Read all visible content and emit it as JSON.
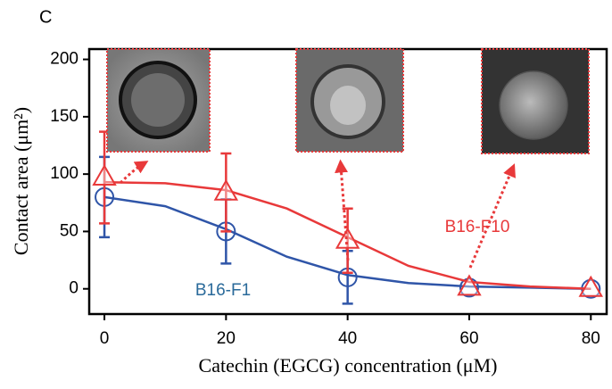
{
  "chart_data": {
    "type": "line",
    "panel_label": "C",
    "x_label": "Catechin (EGCG) concentration (μM)",
    "y_label": "Contact area (μm²)",
    "xlim": [
      -2.5,
      82.6
    ],
    "ylim": [
      -22,
      209
    ],
    "xticks": [
      0,
      20,
      40,
      60,
      80
    ],
    "yticks": [
      0,
      50,
      100,
      150,
      200
    ],
    "series": [
      {
        "name": "B16-F1",
        "color": "#2f55a8",
        "label_color": "#2a6a9a",
        "marker": "circle",
        "x": [
          0,
          20,
          40,
          60,
          80
        ],
        "values": [
          80,
          50,
          10,
          1,
          0
        ],
        "errors": [
          35,
          28,
          23,
          0,
          0
        ],
        "fit_x": [
          0,
          10,
          20,
          30,
          40,
          50,
          60,
          70,
          80
        ],
        "fit_values": [
          80,
          72,
          52,
          28,
          12,
          5,
          2,
          1,
          0
        ]
      },
      {
        "name": "B16-F10",
        "color": "#e8393a",
        "label_color": "#e8393a",
        "marker": "triangle",
        "x": [
          0,
          20,
          40,
          60,
          80
        ],
        "values": [
          97,
          84,
          42,
          1,
          0
        ],
        "errors": [
          40,
          34,
          28,
          0,
          0
        ],
        "fit_x": [
          0,
          10,
          20,
          30,
          40,
          50,
          60,
          70,
          80
        ],
        "fit_values": [
          93,
          92,
          86,
          70,
          45,
          20,
          6,
          2,
          0
        ]
      }
    ]
  }
}
